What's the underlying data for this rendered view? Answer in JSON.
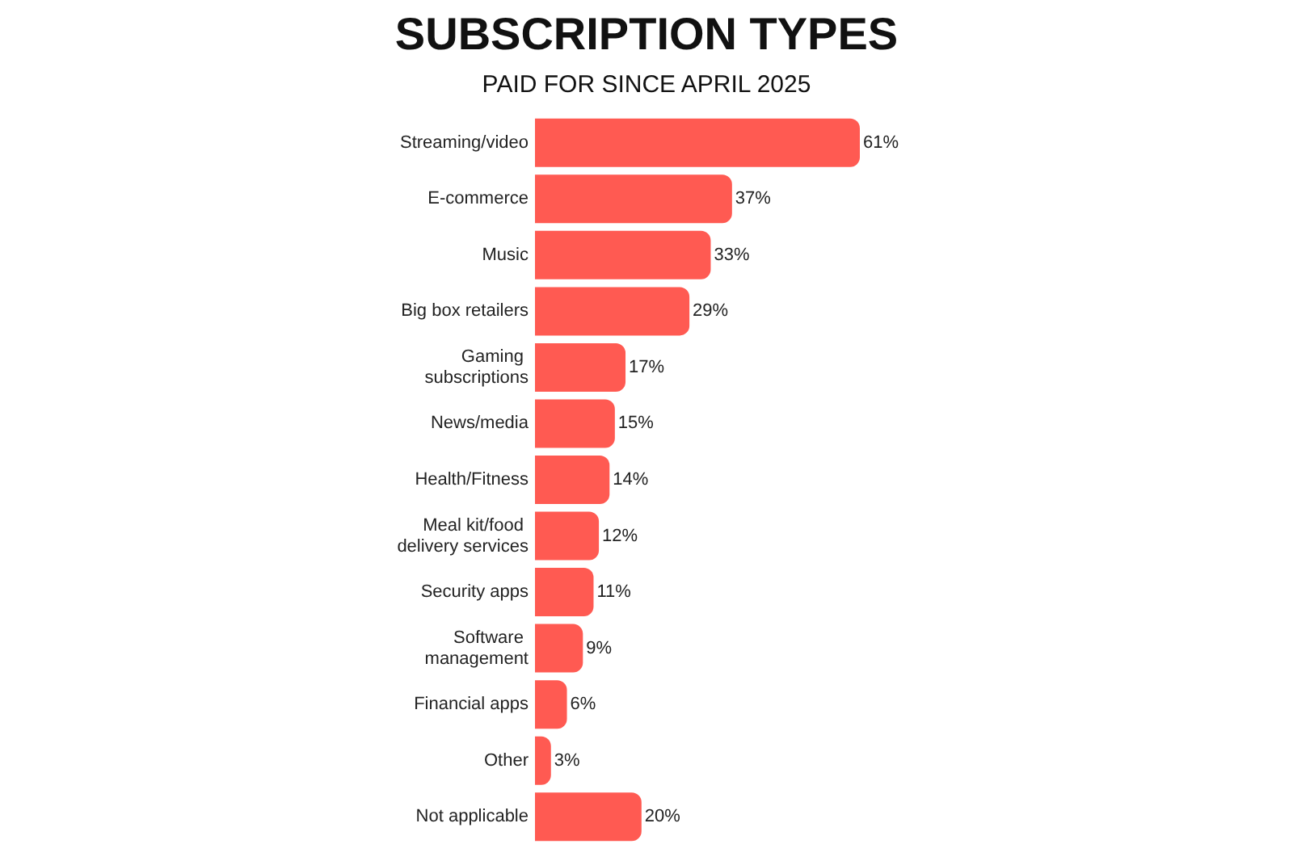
{
  "chart_data": {
    "type": "bar",
    "orientation": "horizontal",
    "title": "SUBSCRIPTION TYPES",
    "subtitle": "PAID FOR SINCE APRIL 2025",
    "categories": [
      "Streaming/video",
      "E-commerce",
      "Music",
      "Big box retailers",
      "Gaming subscriptions",
      "News/media",
      "Health/Fitness",
      "Meal kit/food delivery services",
      "Security apps",
      "Software management",
      "Financial apps",
      "Other",
      "Not applicable"
    ],
    "values": [
      61,
      37,
      33,
      29,
      17,
      15,
      14,
      12,
      11,
      9,
      6,
      3,
      20
    ],
    "value_labels": [
      "61%",
      "37%",
      "33%",
      "29%",
      "17%",
      "15%",
      "14%",
      "12%",
      "11%",
      "9%",
      "6%",
      "3%",
      "20%"
    ],
    "color": "#ff5a52"
  }
}
